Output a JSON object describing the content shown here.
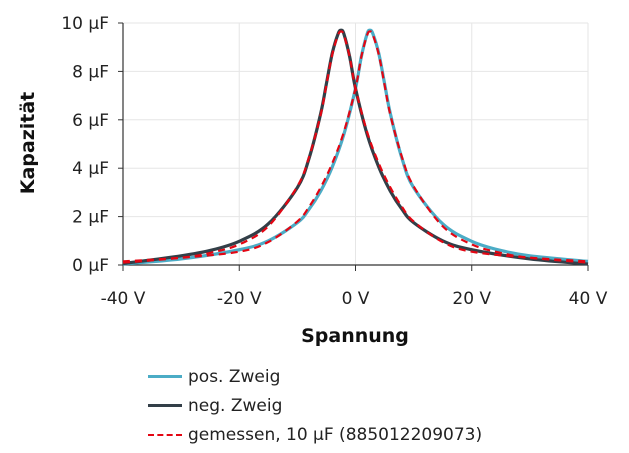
{
  "chart_data": {
    "type": "line",
    "xlabel": "Spannung",
    "ylabel": "Kapazität",
    "xlim": [
      -40,
      40
    ],
    "ylim": [
      0,
      10
    ],
    "x_ticks": [
      -40,
      -20,
      0,
      20,
      40
    ],
    "x_tick_labels": [
      "-40 V",
      "-20 V",
      "0 V",
      "20 V",
      "40 V"
    ],
    "y_ticks": [
      0,
      2,
      4,
      6,
      8,
      10
    ],
    "y_tick_labels": [
      "0 µF",
      "2 µF",
      "4 µF",
      "6 µF",
      "8 µF",
      "10 µF"
    ],
    "grid": true,
    "legend_position": "bottom",
    "series": [
      {
        "name": "pos. Zweig",
        "color": "#4bacc6",
        "style": "solid",
        "x": [
          -40,
          -30,
          -20,
          -15,
          -10,
          -8,
          -6,
          -4,
          -2,
          0,
          1,
          2,
          2.5,
          3,
          4,
          5,
          6,
          8,
          10,
          15,
          20,
          25,
          30,
          40
        ],
        "y": [
          0.04,
          0.25,
          0.63,
          1.0,
          1.75,
          2.3,
          3.05,
          4.05,
          5.4,
          7.3,
          8.6,
          9.55,
          9.7,
          9.55,
          8.75,
          7.5,
          6.25,
          4.4,
          3.2,
          1.7,
          0.98,
          0.6,
          0.38,
          0.15
        ]
      },
      {
        "name": "neg. Zweig",
        "color": "#333f48",
        "style": "solid",
        "x": [
          -40,
          -30,
          -25,
          -20,
          -15,
          -10,
          -8,
          -6,
          -5,
          -4,
          -3,
          -2.5,
          -2,
          -1,
          0,
          2,
          4,
          6,
          8,
          10,
          15,
          20,
          30,
          40
        ],
        "y": [
          0.06,
          0.38,
          0.6,
          0.98,
          1.7,
          3.2,
          4.4,
          6.25,
          7.5,
          8.75,
          9.55,
          9.7,
          9.55,
          8.6,
          7.3,
          5.4,
          4.05,
          3.05,
          2.3,
          1.75,
          1.0,
          0.63,
          0.25,
          0.04
        ]
      },
      {
        "name": "gemessen, 10 µF (885012209073)",
        "color": "#e30613",
        "style": "dashed",
        "branches": [
          {
            "x": [
              -40,
              -30,
              -20,
              -15,
              -10,
              -8,
              -6,
              -4,
              -2,
              0,
              1,
              2,
              2.5,
              3,
              4,
              5,
              6,
              8,
              10,
              15,
              20,
              25,
              30,
              40
            ],
            "y": [
              0.15,
              0.3,
              0.55,
              0.95,
              1.8,
              2.4,
              3.2,
              4.2,
              5.5,
              7.3,
              8.6,
              9.5,
              9.65,
              9.5,
              8.7,
              7.45,
              6.2,
              4.45,
              3.25,
              1.6,
              0.85,
              0.5,
              0.3,
              0.1
            ]
          },
          {
            "x": [
              -40,
              -30,
              -25,
              -20,
              -15,
              -10,
              -8,
              -6,
              -5,
              -4,
              -3,
              -2.5,
              -2,
              -1,
              0,
              2,
              4,
              6,
              8,
              10,
              15,
              20,
              30,
              40
            ],
            "y": [
              0.1,
              0.3,
              0.5,
              0.85,
              1.6,
              3.25,
              4.45,
              6.2,
              7.45,
              8.7,
              9.5,
              9.65,
              9.5,
              8.6,
              7.3,
              5.5,
              4.2,
              3.2,
              2.4,
              1.8,
              0.95,
              0.55,
              0.3,
              0.15
            ]
          }
        ]
      }
    ]
  }
}
